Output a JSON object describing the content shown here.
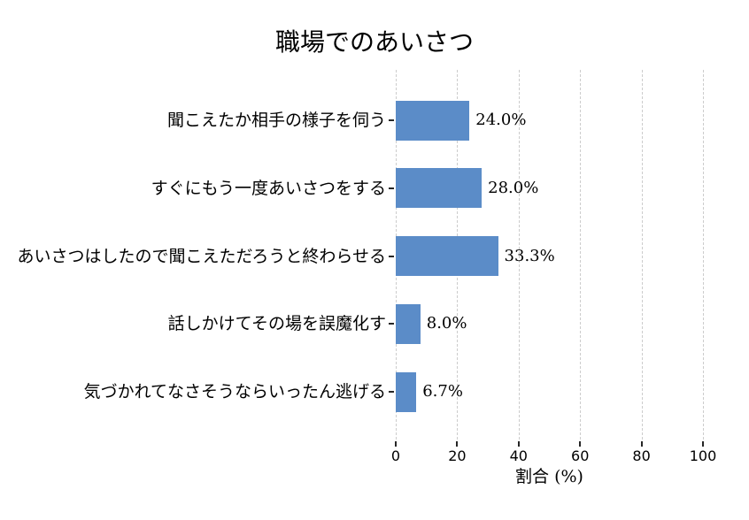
{
  "chart_data": {
    "type": "bar",
    "orientation": "horizontal",
    "title": "職場でのあいさつ",
    "categories": [
      "聞こえたか相手の様子を伺う",
      "すぐにもう一度あいさつをする",
      "あいさつはしたので聞こえただろうと終わらせる",
      "話しかけてその場を誤魔化す",
      "気づかれてなさそうならいったん逃げる"
    ],
    "values": [
      24.0,
      28.0,
      33.3,
      8.0,
      6.7
    ],
    "value_labels": [
      "24.0%",
      "28.0%",
      "33.3%",
      "8.0%",
      "6.7%"
    ],
    "xlabel": "割合 (%)",
    "xticks": [
      0,
      20,
      40,
      60,
      80,
      100
    ],
    "xtick_labels": [
      "0",
      "20",
      "40",
      "60",
      "80",
      "100"
    ],
    "xlim": [
      0,
      100
    ],
    "grid": "vertical-dashed",
    "legend": "none",
    "colors": {
      "bar": "#5b8cc8",
      "grid": "#cccccc",
      "tick": "#262626",
      "text": "#000000",
      "background": "#ffffff"
    }
  }
}
